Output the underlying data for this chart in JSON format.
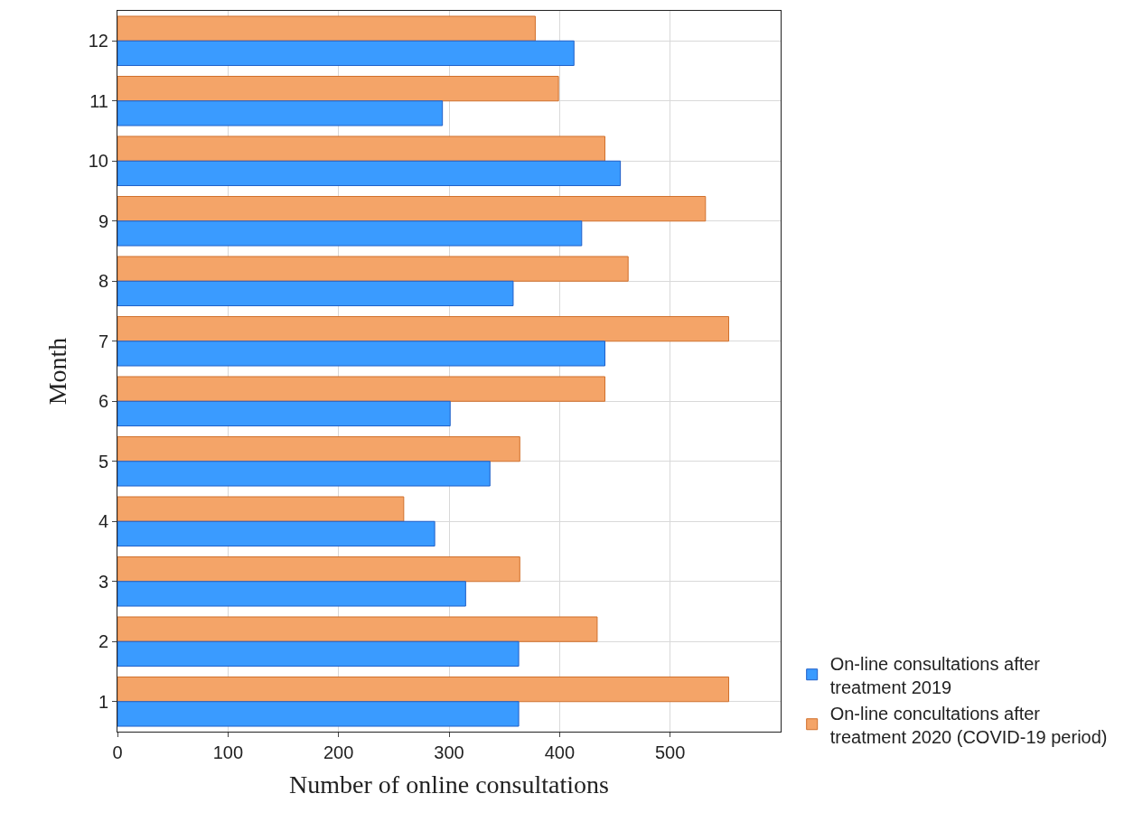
{
  "chart_data": {
    "type": "bar",
    "orientation": "horizontal",
    "xlabel": "Number of online consultations",
    "ylabel": "Month",
    "categories": [
      "12",
      "11",
      "10",
      "9",
      "8",
      "7",
      "6",
      "5",
      "4",
      "3",
      "2",
      "1"
    ],
    "series": [
      {
        "name": "On-line consultations after\ntreatment 2019",
        "color": "#3a9bff",
        "values": [
          413,
          294,
          455,
          420,
          358,
          441,
          301,
          337,
          287,
          315,
          363,
          363
        ]
      },
      {
        "name": "On-line concultations after\ntreatment 2020 (COVID-19 period)",
        "color": "#f4a468",
        "values": [
          378,
          399,
          441,
          532,
          462,
          553,
          441,
          364,
          259,
          364,
          434,
          553
        ]
      }
    ],
    "xlim": [
      0,
      600
    ],
    "xticks": [
      0,
      100,
      200,
      300,
      400,
      500
    ],
    "grid": true,
    "legend": "bottom right"
  }
}
